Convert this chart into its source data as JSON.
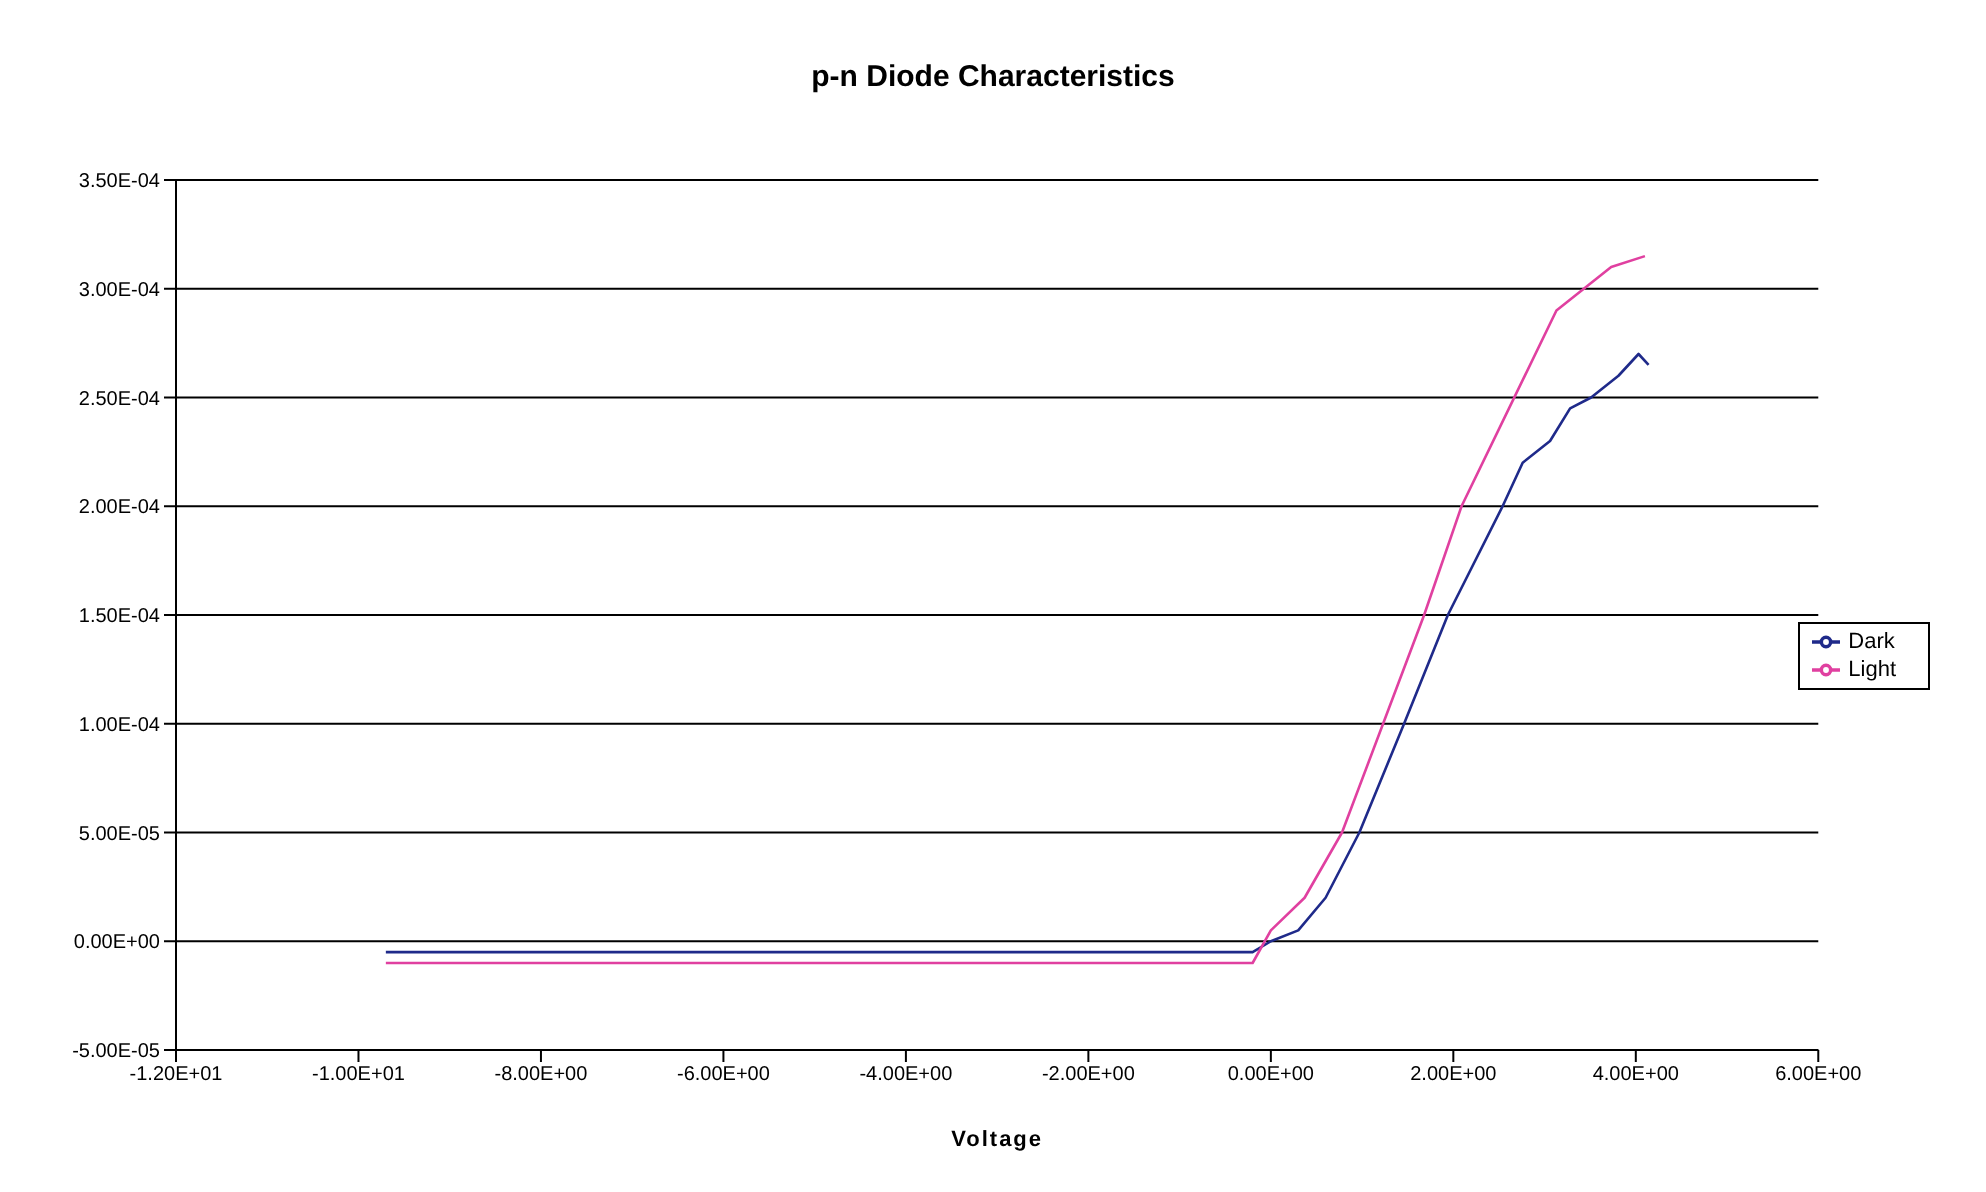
{
  "chart_data": {
    "type": "line",
    "title": "p-n Diode Characteristics",
    "xlabel": "Voltage",
    "xlim": [
      -12,
      6
    ],
    "ylim": [
      -5e-05,
      0.00035
    ],
    "xticks": [
      {
        "value": -12,
        "label": "-1.20E+01"
      },
      {
        "value": -10,
        "label": "-1.00E+01"
      },
      {
        "value": -8,
        "label": "-8.00E+00"
      },
      {
        "value": -6,
        "label": "-6.00E+00"
      },
      {
        "value": -4,
        "label": "-4.00E+00"
      },
      {
        "value": -2,
        "label": "-2.00E+00"
      },
      {
        "value": 0,
        "label": "0.00E+00"
      },
      {
        "value": 2,
        "label": "2.00E+00"
      },
      {
        "value": 4,
        "label": "4.00E+00"
      },
      {
        "value": 6,
        "label": "6.00E+00"
      }
    ],
    "yticks": [
      {
        "value": -5e-05,
        "label": "-5.00E-05"
      },
      {
        "value": 0,
        "label": "0.00E+00"
      },
      {
        "value": 5e-05,
        "label": "5.00E-05"
      },
      {
        "value": 0.0001,
        "label": "1.00E-04"
      },
      {
        "value": 0.00015,
        "label": "1.50E-04"
      },
      {
        "value": 0.0002,
        "label": "2.00E-04"
      },
      {
        "value": 0.00025,
        "label": "2.50E-04"
      },
      {
        "value": 0.0003,
        "label": "3.00E-04"
      },
      {
        "value": 0.00035,
        "label": "3.50E-04"
      }
    ],
    "grid": "y",
    "legend": "right",
    "marker": "none",
    "line_style": "solid",
    "series": [
      {
        "name": "Dark",
        "color": "#1f2a8a",
        "x": [
          -9.7,
          -1.5,
          -0.4,
          -0.2,
          0,
          0.3,
          0.6,
          0.97,
          1.46,
          1.94,
          2.54,
          2.76,
          3.06,
          3.28,
          3.51,
          3.81,
          4.03,
          4.14
        ],
        "values": [
          -5e-06,
          -5e-06,
          -5e-06,
          -5e-06,
          0,
          5e-06,
          2e-05,
          5e-05,
          0.0001,
          0.00015,
          0.0002,
          0.00022,
          0.00023,
          0.000245,
          0.00025,
          0.00026,
          0.00027,
          0.000265
        ]
      },
      {
        "name": "Light",
        "color": "#e040a0",
        "x": [
          -9.7,
          -1.5,
          -0.2,
          0,
          0.37,
          0.78,
          1.23,
          1.68,
          2.09,
          2.61,
          3.13,
          3.43,
          3.73,
          4.1
        ],
        "values": [
          -1e-05,
          -1e-05,
          -1e-05,
          5e-06,
          2e-05,
          5e-05,
          0.0001,
          0.00015,
          0.0002,
          0.000245,
          0.00029,
          0.0003,
          0.00031,
          0.000315
        ]
      }
    ]
  }
}
